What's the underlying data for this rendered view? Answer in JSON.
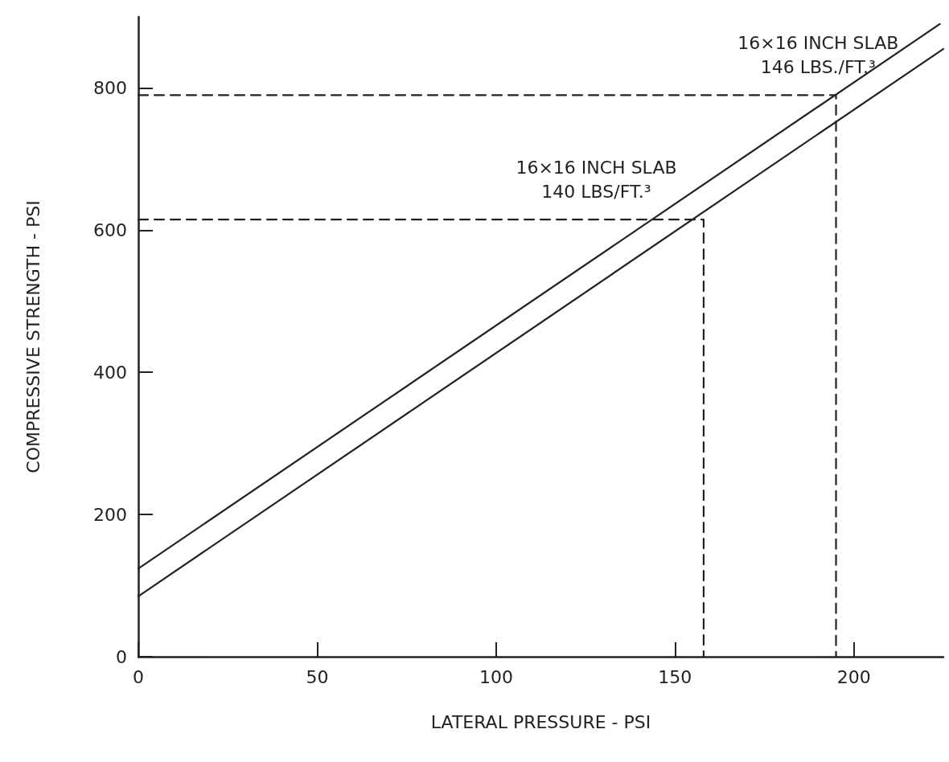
{
  "chart_data": {
    "type": "line",
    "xlabel": "LATERAL PRESSURE - PSI",
    "ylabel": "COMPRESSIVE STRENGTH - PSI",
    "xlim": [
      0,
      225
    ],
    "xticks": [
      0,
      50,
      100,
      150,
      200
    ],
    "ylim": [
      0,
      900
    ],
    "yticks": [
      0,
      200,
      400,
      600,
      800
    ],
    "grid": false,
    "marker": "none",
    "series": [
      {
        "color": "#222222",
        "x": [
          0,
          224
        ],
        "values": [
          124,
          890
        ],
        "line_style": "solid"
      },
      {
        "color": "#222222",
        "x": [
          0,
          225
        ],
        "values": [
          85,
          855
        ],
        "line_style": "solid"
      },
      {
        "color": "#222222",
        "x": [
          0,
          195,
          195
        ],
        "values": [
          790,
          790,
          0
        ],
        "line_style": "dashed"
      },
      {
        "color": "#222222",
        "x": [
          0,
          158,
          158
        ],
        "values": [
          615,
          615,
          0
        ],
        "line_style": "dashed"
      }
    ],
    "annotations": [
      {
        "text": "16×16 INCH SLAB\n146 LBS./FT.³",
        "x": 190,
        "y": 790
      },
      {
        "text": "16×16 INCH SLAB\n140 LBS/FT.³",
        "x": 128,
        "y": 615
      }
    ]
  }
}
